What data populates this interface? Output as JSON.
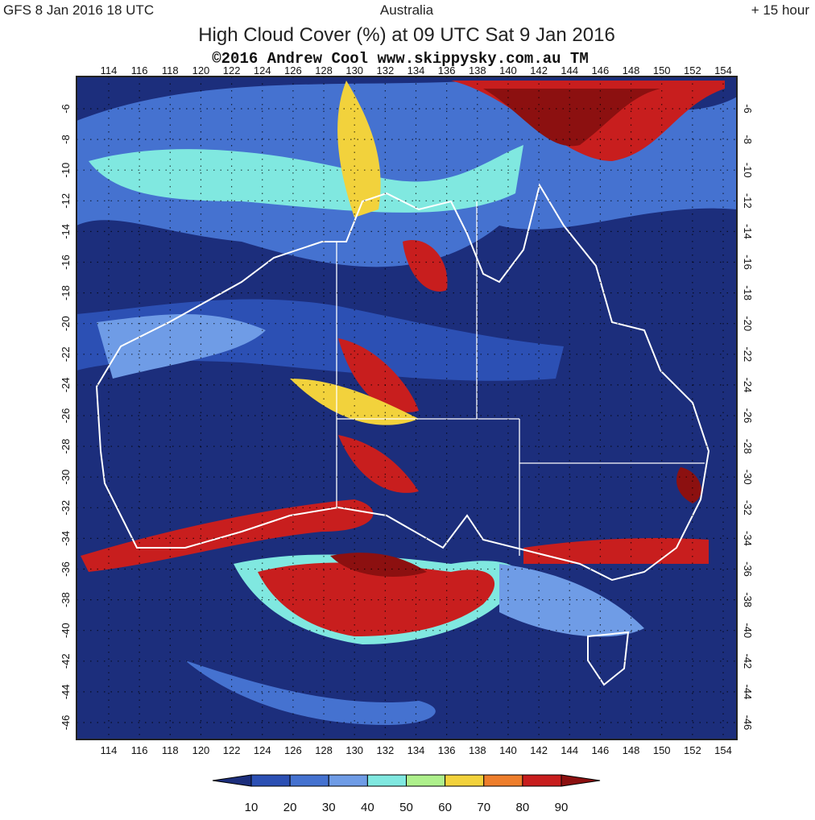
{
  "header": {
    "model_run": "GFS  8 Jan 2016 18 UTC",
    "region": "Australia",
    "forecast_hour": "+ 15 hour"
  },
  "title": "High Cloud Cover (%) at 09 UTC Sat 9 Jan 2016",
  "credit": "©2016 Andrew Cool  www.skippysky.com.au  TM",
  "map": {
    "lon_labels": [
      "114",
      "116",
      "118",
      "120",
      "122",
      "124",
      "126",
      "128",
      "130",
      "132",
      "134",
      "136",
      "138",
      "140",
      "142",
      "144",
      "146",
      "148",
      "150",
      "152",
      "154"
    ],
    "lat_labels": [
      "-6",
      "-8",
      "-10",
      "-12",
      "-14",
      "-16",
      "-18",
      "-20",
      "-22",
      "-24",
      "-26",
      "-28",
      "-30",
      "-32",
      "-34",
      "-36",
      "-38",
      "-40",
      "-42",
      "-44",
      "-46"
    ]
  },
  "legend": {
    "labels": [
      "10",
      "20",
      "30",
      "40",
      "50",
      "60",
      "70",
      "80",
      "90"
    ],
    "colors": [
      "#1c2e7c",
      "#2c50b4",
      "#4572d0",
      "#6f9ce6",
      "#80e8e0",
      "#aef08c",
      "#f2d23c",
      "#ee7e2c",
      "#c81e1e",
      "#8c1010"
    ]
  }
}
